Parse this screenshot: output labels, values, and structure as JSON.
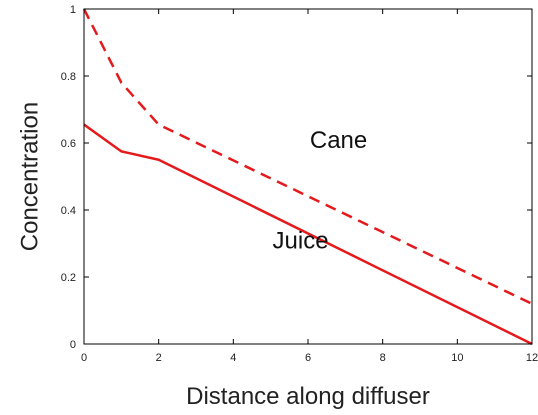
{
  "chart_data": {
    "type": "line",
    "xlabel": "Distance along diffuser",
    "ylabel": "Concentration",
    "xlim": [
      0,
      12
    ],
    "ylim": [
      0,
      1
    ],
    "x_ticks": [
      "0",
      "2",
      "4",
      "6",
      "8",
      "10",
      "12"
    ],
    "y_ticks": [
      "0",
      "0.2",
      "0.4",
      "0.6",
      "0.8",
      "1"
    ],
    "grid": false,
    "series": [
      {
        "style": "dashed",
        "color": "#e41a1c",
        "x": [
          0,
          1,
          2,
          12
        ],
        "y": [
          1.0,
          0.78,
          0.655,
          0.12
        ]
      },
      {
        "style": "solid",
        "color": "#e41a1c",
        "x": [
          0,
          1,
          2,
          12
        ],
        "y": [
          0.655,
          0.575,
          0.55,
          0.0
        ]
      }
    ],
    "annotations": [
      {
        "text": "Cane",
        "x": 6.05,
        "y": 0.585
      },
      {
        "text": "Juice",
        "x": 5.05,
        "y": 0.285
      }
    ]
  }
}
